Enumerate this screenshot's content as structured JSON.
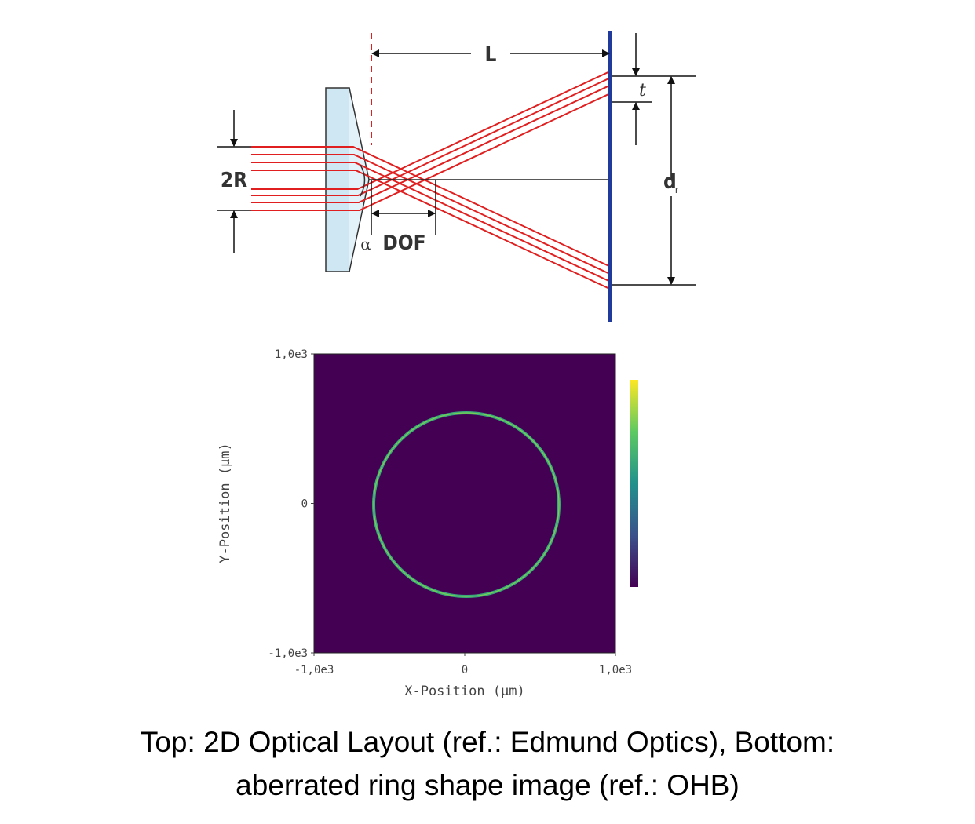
{
  "diagram": {
    "labels": {
      "two_r": "2R",
      "dof": "DOF",
      "alpha": "α",
      "l": "L",
      "t": "t",
      "d": "d",
      "r": "r"
    }
  },
  "chart_data": {
    "type": "image",
    "xlabel": "X-Position (µm)",
    "ylabel": "Y-Position (µm)",
    "xlim": [
      -1000,
      1000
    ],
    "ylim": [
      -1000,
      1000
    ],
    "xticks": [
      {
        "value": -1000,
        "label": "-1,0e3"
      },
      0,
      {
        "value": 1000,
        "label": "1,0e3"
      }
    ],
    "yticks": [
      {
        "value": -1000,
        "label": "-1,0e3"
      },
      0,
      {
        "value": 1000,
        "label": "1,0e3"
      }
    ]
  },
  "caption": {
    "lines": [
      "Top: 2D Optical Layout (ref.: Edmund Optics), Bottom:",
      "aberrated ring shape image (ref.: OHB)"
    ]
  }
}
